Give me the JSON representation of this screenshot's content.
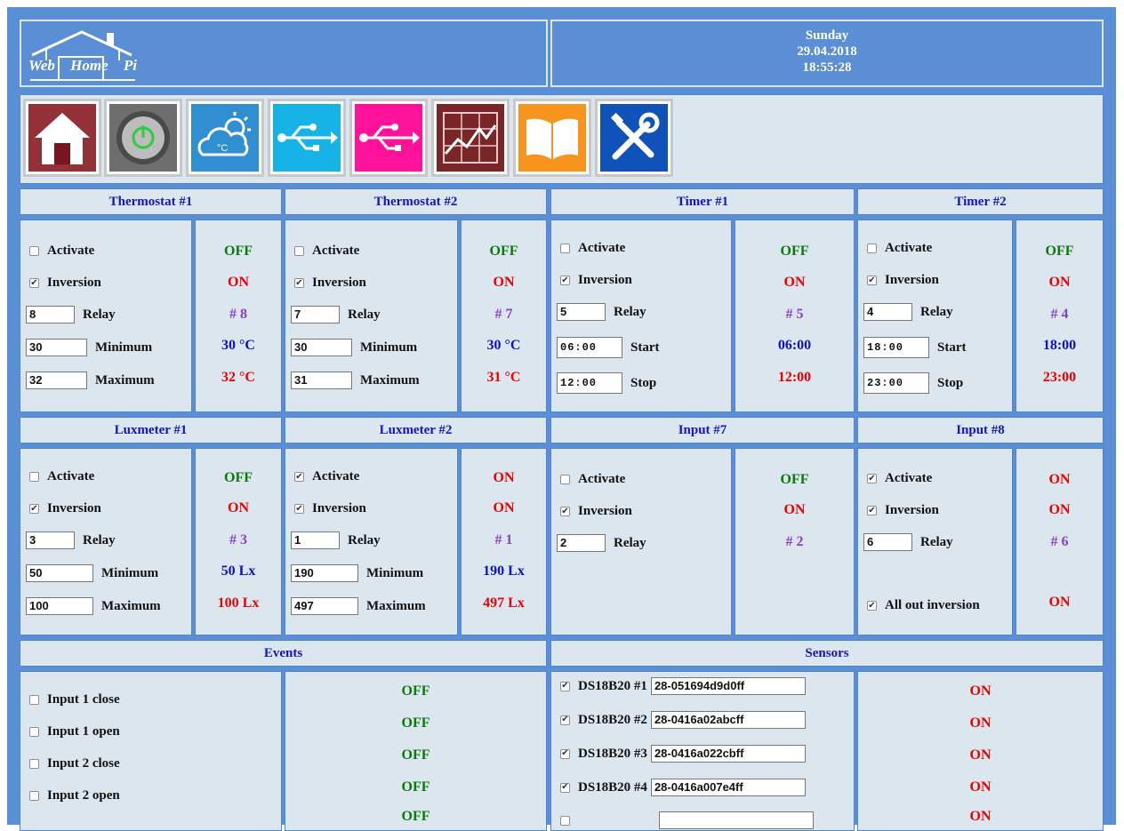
{
  "logo": {
    "word1": "Web",
    "word2": "Home",
    "word3": "Pi"
  },
  "datetime": {
    "day": "Sunday",
    "date": "29.04.2018",
    "time": "18:55:28"
  },
  "toolbar": [
    {
      "name": "home-icon",
      "color": "#943038"
    },
    {
      "name": "power-icon",
      "color": "#6e6e6e"
    },
    {
      "name": "weather-icon",
      "color": "#2f8fd1"
    },
    {
      "name": "usb-icon",
      "color": "#16b3e6"
    },
    {
      "name": "usb-icon",
      "color": "#ff1199"
    },
    {
      "name": "chart-icon",
      "color": "#7a2528"
    },
    {
      "name": "book-icon",
      "color": "#f7941d"
    },
    {
      "name": "tools-icon",
      "color": "#0f52ba"
    }
  ],
  "thermostat1": {
    "title": "Thermostat #1",
    "activate": "Activate",
    "inversion": "Inversion",
    "relay_label": "Relay",
    "relay": "8",
    "min_label": "Minimum",
    "min": "30",
    "max_label": "Maximum",
    "max": "32",
    "s_activate": "OFF",
    "s_inversion": "ON",
    "s_relay": "# 8",
    "s_min": "30 °C",
    "s_max": "32 °C",
    "activate_checked": false,
    "inversion_checked": true
  },
  "thermostat2": {
    "title": "Thermostat #2",
    "activate": "Activate",
    "inversion": "Inversion",
    "relay_label": "Relay",
    "relay": "7",
    "min_label": "Minimum",
    "min": "30",
    "max_label": "Maximum",
    "max": "31",
    "s_activate": "OFF",
    "s_inversion": "ON",
    "s_relay": "# 7",
    "s_min": "30 °C",
    "s_max": "31 °C",
    "activate_checked": false,
    "inversion_checked": true
  },
  "timer1": {
    "title": "Timer #1",
    "activate": "Activate",
    "inversion": "Inversion",
    "relay_label": "Relay",
    "relay": "5",
    "start_label": "Start",
    "start": "06:00",
    "stop_label": "Stop",
    "stop": "12:00",
    "s_activate": "OFF",
    "s_inversion": "ON",
    "s_relay": "# 5",
    "s_start": "06:00",
    "s_stop": "12:00",
    "activate_checked": false,
    "inversion_checked": true
  },
  "timer2": {
    "title": "Timer #2",
    "activate": "Activate",
    "inversion": "Inversion",
    "relay_label": "Relay",
    "relay": "4",
    "start_label": "Start",
    "start": "18:00",
    "stop_label": "Stop",
    "stop": "23:00",
    "s_activate": "OFF",
    "s_inversion": "ON",
    "s_relay": "# 4",
    "s_start": "18:00",
    "s_stop": "23:00",
    "activate_checked": false,
    "inversion_checked": true
  },
  "lux1": {
    "title": "Luxmeter #1",
    "activate": "Activate",
    "inversion": "Inversion",
    "relay_label": "Relay",
    "relay": "3",
    "min_label": "Minimum",
    "min": "50",
    "max_label": "Maximum",
    "max": "100",
    "s_activate": "OFF",
    "s_inversion": "ON",
    "s_relay": "# 3",
    "s_min": "50 Lx",
    "s_max": "100 Lx",
    "activate_checked": false,
    "inversion_checked": true
  },
  "lux2": {
    "title": "Luxmeter #2",
    "activate": "Activate",
    "inversion": "Inversion",
    "relay_label": "Relay",
    "relay": "1",
    "min_label": "Minimum",
    "min": "190",
    "max_label": "Maximum",
    "max": "497",
    "s_activate": "ON",
    "s_inversion": "ON",
    "s_relay": "# 1",
    "s_min": "190 Lx",
    "s_max": "497 Lx",
    "activate_checked": true,
    "inversion_checked": true
  },
  "input7": {
    "title": "Input #7",
    "activate": "Activate",
    "inversion": "Inversion",
    "relay_label": "Relay",
    "relay": "2",
    "s_activate": "OFF",
    "s_inversion": "ON",
    "s_relay": "# 2",
    "activate_checked": false,
    "inversion_checked": true
  },
  "input8": {
    "title": "Input #8",
    "activate": "Activate",
    "inversion": "Inversion",
    "relay_label": "Relay",
    "relay": "6",
    "allout": "All out inversion",
    "s_activate": "ON",
    "s_inversion": "ON",
    "s_relay": "# 6",
    "s_allout": "ON",
    "activate_checked": true,
    "inversion_checked": true,
    "allout_checked": true
  },
  "events": {
    "title": "Events",
    "items": [
      {
        "label": "Input 1 close",
        "status": "OFF"
      },
      {
        "label": "Input 1 open",
        "status": "OFF"
      },
      {
        "label": "Input 2 close",
        "status": "OFF"
      },
      {
        "label": "Input 2 open",
        "status": "OFF"
      },
      {
        "label": "",
        "status": "OFF"
      }
    ]
  },
  "sensors": {
    "title": "Sensors",
    "items": [
      {
        "label": "DS18B20 #1",
        "id": "28-051694d9d0ff",
        "status": "ON"
      },
      {
        "label": "DS18B20 #2",
        "id": "28-0416a02abcff",
        "status": "ON"
      },
      {
        "label": "DS18B20 #3",
        "id": "28-0416a022cbff",
        "status": "ON"
      },
      {
        "label": "DS18B20 #4",
        "id": "28-0416a007e4ff",
        "status": "ON"
      },
      {
        "label": "",
        "id": "",
        "status": "ON"
      }
    ]
  }
}
